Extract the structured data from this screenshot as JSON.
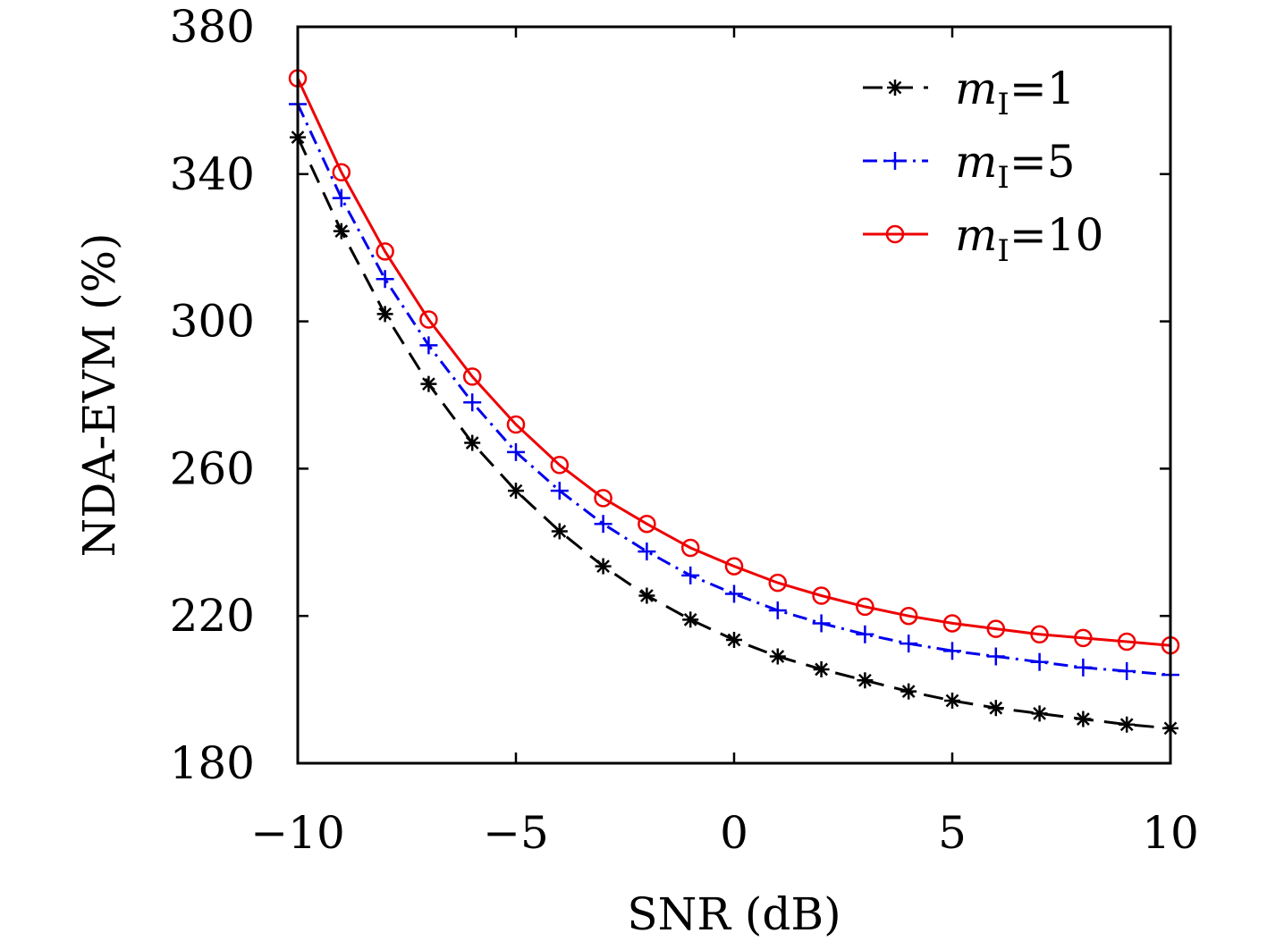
{
  "chart_data": {
    "type": "line",
    "xlabel": "SNR (dB)",
    "ylabel": "NDA-EVM (%)",
    "xlim": [
      -10,
      10
    ],
    "ylim": [
      180,
      380
    ],
    "xticks": [
      -10,
      -5,
      0,
      5,
      10
    ],
    "xtick_labels": [
      "−10",
      "−5",
      "0",
      "5",
      "10"
    ],
    "yticks": [
      180,
      220,
      260,
      300,
      340,
      380
    ],
    "ytick_labels": [
      "180",
      "220",
      "260",
      "300",
      "340",
      "380"
    ],
    "grid": false,
    "legend_position": "top-right",
    "x": [
      -10,
      -9,
      -8,
      -7,
      -6,
      -5,
      -4,
      -3,
      -2,
      -1,
      0,
      1,
      2,
      3,
      4,
      5,
      6,
      7,
      8,
      9,
      10
    ],
    "series": [
      {
        "name": "mI=1",
        "legend_var": "m",
        "legend_sub": "I",
        "legend_rest": "=1",
        "color": "#000000",
        "line_style": "dashed",
        "marker": "asterisk",
        "values": [
          350,
          324.5,
          302,
          283,
          267,
          254,
          243,
          233.5,
          225.5,
          219,
          213.5,
          209,
          205.5,
          202.5,
          199.5,
          197,
          195,
          193.5,
          192,
          190.5,
          189.5
        ]
      },
      {
        "name": "mI=5",
        "legend_var": "m",
        "legend_sub": "I",
        "legend_rest": "=5",
        "color": "#0000ee",
        "line_style": "dashdot",
        "marker": "plus",
        "values": [
          359,
          333.5,
          311.5,
          293.5,
          278,
          264.5,
          254,
          245,
          237.5,
          231,
          226,
          221.5,
          218,
          215,
          212.5,
          210.5,
          209,
          207.5,
          206,
          205,
          204
        ]
      },
      {
        "name": "mI=10",
        "legend_var": "m",
        "legend_sub": "I",
        "legend_rest": "=10",
        "color": "#ee0000",
        "line_style": "solid",
        "marker": "circle",
        "values": [
          366,
          340.5,
          319,
          300.5,
          285,
          272,
          261,
          252,
          245,
          238.5,
          233.5,
          229,
          225.5,
          222.5,
          220,
          218,
          216.5,
          215,
          214,
          213,
          212
        ]
      }
    ]
  }
}
